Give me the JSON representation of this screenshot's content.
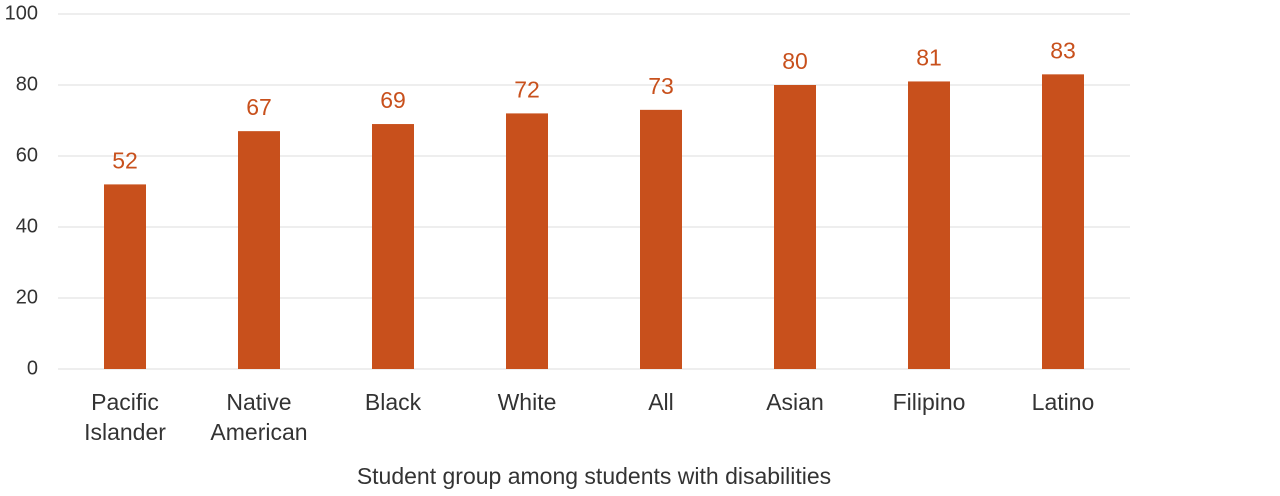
{
  "chart_data": {
    "type": "bar",
    "x_label": "Student group among students with disabilities",
    "categories": [
      "Pacific Islander",
      "Native American",
      "Black",
      "White",
      "All",
      "Asian",
      "Filipino",
      "Latino"
    ],
    "values": [
      52,
      67,
      69,
      72,
      73,
      80,
      81,
      83
    ],
    "color": "#c8501c",
    "ylim": [
      0,
      100
    ],
    "yticks": [
      0,
      20,
      40,
      60,
      80,
      100
    ],
    "grid": true
  }
}
